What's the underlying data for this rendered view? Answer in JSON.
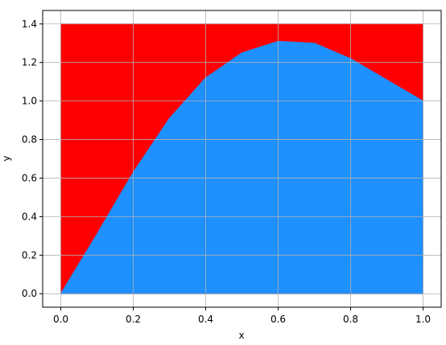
{
  "chart_data": {
    "type": "area",
    "x": [
      0,
      0.1,
      0.2,
      0.3,
      0.4,
      0.5,
      0.6,
      0.7,
      0.8,
      0.9,
      1.0
    ],
    "series": [
      {
        "color": "#ff0000",
        "values": [
          1.4,
          1.4,
          1.4,
          1.4,
          1.4,
          1.4,
          1.4,
          1.4,
          1.4,
          1.4,
          1.4
        ]
      },
      {
        "color": "#1e90ff",
        "values": [
          0,
          0.31,
          0.63,
          0.91,
          1.12,
          1.25,
          1.31,
          1.3,
          1.22,
          1.11,
          1.0
        ]
      }
    ],
    "xlabel": "x",
    "ylabel": "y",
    "xlim": [
      -0.05,
      1.05
    ],
    "ylim": [
      -0.07,
      1.47
    ],
    "xticks": [
      {
        "value": 0,
        "label": "0.0"
      },
      0.2,
      0.4,
      0.6,
      0.8,
      {
        "value": 1,
        "label": "1.0"
      }
    ],
    "yticks": [
      {
        "value": 0,
        "label": "0.0"
      },
      0.2,
      0.4,
      0.6,
      0.8,
      {
        "value": 1,
        "label": "1.0"
      },
      1.2,
      1.4
    ],
    "grid": true
  }
}
